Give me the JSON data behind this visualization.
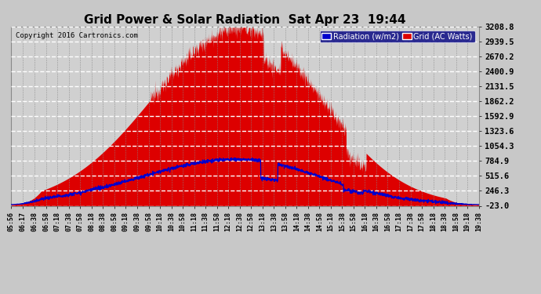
{
  "title": "Grid Power & Solar Radiation  Sat Apr 23  19:44",
  "copyright": "Copyright 2016 Cartronics.com",
  "legend_radiation": "Radiation (w/m2)",
  "legend_grid": "Grid (AC Watts)",
  "plot_bg_color": "#d8d8d8",
  "outer_bg_color": "#c0c0c0",
  "grid_h_color": "#ffffff",
  "grid_v_color": "#aaaaaa",
  "title_color": "#000000",
  "tick_color": "#000000",
  "copyright_color": "#000000",
  "red_fill_color": "#dd0000",
  "blue_line_color": "#0000dd",
  "ylim_min": -23.0,
  "ylim_max": 3208.8,
  "yticks": [
    -23.0,
    246.3,
    515.6,
    784.9,
    1054.3,
    1323.6,
    1592.9,
    1862.2,
    2131.5,
    2400.9,
    2670.2,
    2939.5,
    3208.8
  ],
  "time_labels": [
    "05:56",
    "06:17",
    "06:38",
    "06:58",
    "07:18",
    "07:38",
    "07:58",
    "08:18",
    "08:38",
    "08:58",
    "09:18",
    "09:38",
    "09:58",
    "10:18",
    "10:38",
    "10:58",
    "11:18",
    "11:38",
    "11:58",
    "12:18",
    "12:38",
    "12:58",
    "13:18",
    "13:38",
    "13:58",
    "14:18",
    "14:38",
    "14:58",
    "15:18",
    "15:38",
    "15:58",
    "16:18",
    "16:38",
    "16:58",
    "17:18",
    "17:38",
    "17:58",
    "18:18",
    "18:38",
    "18:58",
    "19:18",
    "19:38"
  ],
  "time_label_minutes": [
    356,
    377,
    398,
    418,
    438,
    458,
    478,
    498,
    518,
    538,
    558,
    578,
    598,
    618,
    638,
    658,
    678,
    698,
    718,
    738,
    758,
    778,
    798,
    818,
    838,
    858,
    878,
    898,
    918,
    938,
    958,
    978,
    998,
    1018,
    1038,
    1058,
    1078,
    1098,
    1118,
    1138,
    1158,
    1178
  ]
}
